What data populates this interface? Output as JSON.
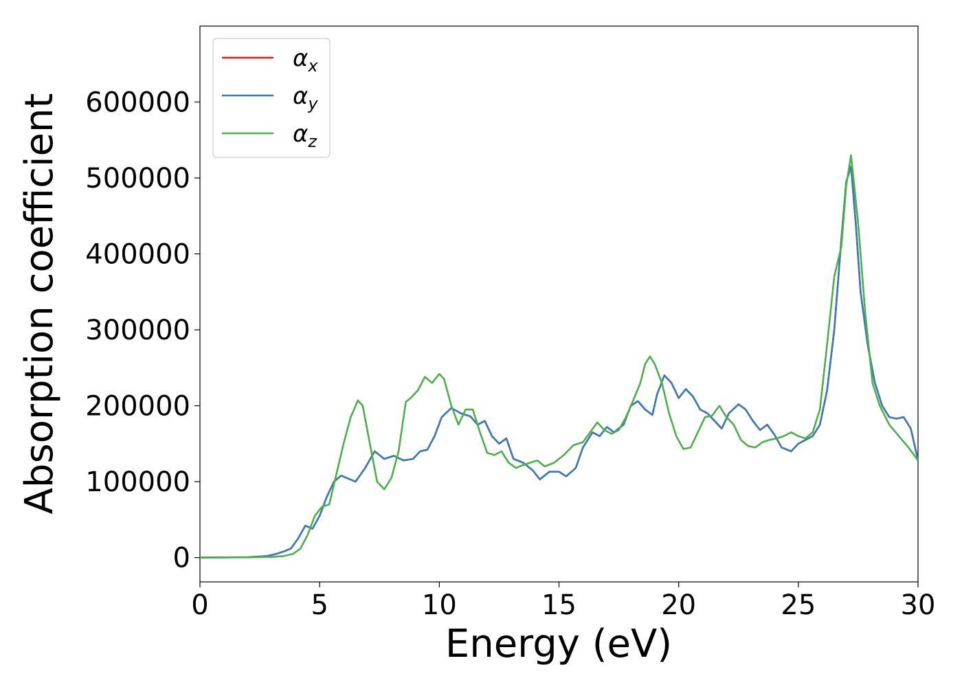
{
  "chart_data": {
    "type": "line",
    "xlabel": "Energy (eV)",
    "ylabel": "Absorption coefficient",
    "xlim": [
      0,
      30
    ],
    "ylim": [
      -32000,
      700000
    ],
    "xticks": [
      "0",
      "5",
      "10",
      "15",
      "20",
      "25",
      "30"
    ],
    "xtick_values": [
      0,
      5,
      10,
      15,
      20,
      25,
      30
    ],
    "yticks": [
      "0",
      "100000",
      "200000",
      "300000",
      "400000",
      "500000",
      "600000"
    ],
    "ytick_values": [
      0,
      100000,
      200000,
      300000,
      400000,
      500000,
      600000
    ],
    "grid": false,
    "legend_position": "top-left",
    "series": [
      {
        "name": "α_x",
        "symbol": "α",
        "sub": "x",
        "color": "#e41a1c",
        "x": [
          0,
          2,
          2.8,
          3.2,
          3.5,
          3.8,
          4.1,
          4.4,
          4.7,
          5.0,
          5.3,
          5.6,
          5.9,
          6.2,
          6.5,
          6.9,
          7.3,
          7.7,
          8.1,
          8.5,
          8.9,
          9.2,
          9.5,
          9.8,
          10.1,
          10.5,
          10.9,
          11.3,
          11.6,
          11.9,
          12.2,
          12.5,
          12.8,
          13.1,
          13.5,
          13.9,
          14.2,
          14.6,
          15.0,
          15.3,
          15.7,
          16.0,
          16.4,
          16.7,
          17.0,
          17.3,
          17.7,
          18.0,
          18.3,
          18.6,
          18.9,
          19.1,
          19.4,
          19.7,
          20.0,
          20.3,
          20.6,
          20.9,
          21.2,
          21.5,
          21.8,
          22.1,
          22.5,
          22.8,
          23.1,
          23.4,
          23.7,
          24.0,
          24.3,
          24.7,
          25.0,
          25.3,
          25.6,
          25.9,
          26.2,
          26.5,
          26.8,
          27.0,
          27.2,
          27.4,
          27.6,
          27.9,
          28.2,
          28.5,
          28.8,
          29.1,
          29.4,
          29.7,
          30.0
        ],
        "y": [
          0,
          500,
          2000,
          5000,
          8000,
          12000,
          25000,
          42000,
          38000,
          55000,
          80000,
          100000,
          108000,
          104000,
          100000,
          118000,
          140000,
          130000,
          134000,
          128000,
          130000,
          140000,
          142000,
          160000,
          185000,
          197000,
          190000,
          186000,
          175000,
          180000,
          160000,
          150000,
          157000,
          130000,
          125000,
          115000,
          103000,
          113000,
          113000,
          107000,
          118000,
          145000,
          165000,
          160000,
          172000,
          165000,
          175000,
          200000,
          206000,
          195000,
          188000,
          215000,
          240000,
          230000,
          210000,
          222000,
          212000,
          195000,
          190000,
          180000,
          170000,
          190000,
          202000,
          195000,
          180000,
          168000,
          175000,
          162000,
          145000,
          140000,
          150000,
          155000,
          160000,
          175000,
          220000,
          300000,
          420000,
          495000,
          515000,
          440000,
          350000,
          280000,
          230000,
          200000,
          185000,
          183000,
          185000,
          170000,
          128000
        ]
      },
      {
        "name": "α_y",
        "symbol": "α",
        "sub": "y",
        "color": "#377eb8",
        "x": [
          0,
          2,
          2.8,
          3.2,
          3.5,
          3.8,
          4.1,
          4.4,
          4.7,
          5.0,
          5.3,
          5.6,
          5.9,
          6.2,
          6.5,
          6.9,
          7.3,
          7.7,
          8.1,
          8.5,
          8.9,
          9.2,
          9.5,
          9.8,
          10.1,
          10.5,
          10.9,
          11.3,
          11.6,
          11.9,
          12.2,
          12.5,
          12.8,
          13.1,
          13.5,
          13.9,
          14.2,
          14.6,
          15.0,
          15.3,
          15.7,
          16.0,
          16.4,
          16.7,
          17.0,
          17.3,
          17.7,
          18.0,
          18.3,
          18.6,
          18.9,
          19.1,
          19.4,
          19.7,
          20.0,
          20.3,
          20.6,
          20.9,
          21.2,
          21.5,
          21.8,
          22.1,
          22.5,
          22.8,
          23.1,
          23.4,
          23.7,
          24.0,
          24.3,
          24.7,
          25.0,
          25.3,
          25.6,
          25.9,
          26.2,
          26.5,
          26.8,
          27.0,
          27.2,
          27.4,
          27.6,
          27.9,
          28.2,
          28.5,
          28.8,
          29.1,
          29.4,
          29.7,
          30.0
        ],
        "y": [
          0,
          500,
          2000,
          5000,
          8000,
          12000,
          25000,
          42000,
          38000,
          55000,
          80000,
          100000,
          108000,
          104000,
          100000,
          118000,
          140000,
          130000,
          134000,
          128000,
          130000,
          140000,
          142000,
          160000,
          185000,
          197000,
          190000,
          186000,
          175000,
          180000,
          160000,
          150000,
          157000,
          130000,
          125000,
          115000,
          103000,
          113000,
          113000,
          107000,
          118000,
          145000,
          165000,
          160000,
          172000,
          165000,
          175000,
          200000,
          206000,
          195000,
          188000,
          215000,
          240000,
          230000,
          210000,
          222000,
          212000,
          195000,
          190000,
          180000,
          170000,
          190000,
          202000,
          195000,
          180000,
          168000,
          175000,
          162000,
          145000,
          140000,
          150000,
          155000,
          160000,
          175000,
          220000,
          300000,
          420000,
          495000,
          515000,
          440000,
          350000,
          280000,
          230000,
          200000,
          185000,
          183000,
          185000,
          170000,
          128000
        ]
      },
      {
        "name": "α_z",
        "symbol": "α",
        "sub": "z",
        "color": "#4daf4a",
        "x": [
          0,
          2,
          3,
          3.5,
          3.9,
          4.2,
          4.5,
          4.8,
          5.1,
          5.4,
          5.7,
          6.0,
          6.3,
          6.6,
          6.8,
          7.1,
          7.4,
          7.7,
          8.0,
          8.3,
          8.6,
          8.8,
          9.1,
          9.4,
          9.7,
          10.0,
          10.2,
          10.5,
          10.8,
          11.1,
          11.4,
          11.7,
          12.0,
          12.3,
          12.6,
          12.9,
          13.2,
          13.5,
          13.8,
          14.1,
          14.4,
          14.8,
          15.2,
          15.6,
          16.0,
          16.3,
          16.6,
          16.9,
          17.2,
          17.5,
          17.8,
          18.1,
          18.4,
          18.6,
          18.8,
          19.0,
          19.3,
          19.6,
          19.9,
          20.2,
          20.5,
          20.8,
          21.1,
          21.4,
          21.7,
          22.0,
          22.3,
          22.6,
          22.9,
          23.2,
          23.5,
          23.8,
          24.1,
          24.4,
          24.7,
          25.0,
          25.3,
          25.6,
          25.9,
          26.2,
          26.5,
          26.8,
          27.0,
          27.2,
          27.5,
          27.8,
          28.1,
          28.4,
          28.8,
          29.2,
          29.6,
          30.0
        ],
        "y": [
          0,
          300,
          800,
          2000,
          5000,
          12000,
          30000,
          55000,
          67000,
          70000,
          110000,
          150000,
          185000,
          207000,
          200000,
          150000,
          100000,
          90000,
          105000,
          140000,
          205000,
          210000,
          220000,
          238000,
          230000,
          242000,
          235000,
          200000,
          175000,
          195000,
          195000,
          165000,
          138000,
          135000,
          140000,
          125000,
          118000,
          122000,
          125000,
          128000,
          120000,
          125000,
          135000,
          148000,
          152000,
          165000,
          178000,
          168000,
          163000,
          168000,
          185000,
          207000,
          230000,
          255000,
          265000,
          255000,
          230000,
          190000,
          160000,
          143000,
          145000,
          165000,
          185000,
          187000,
          200000,
          185000,
          175000,
          155000,
          147000,
          145000,
          152000,
          155000,
          157000,
          160000,
          165000,
          160000,
          157000,
          165000,
          195000,
          280000,
          370000,
          410000,
          490000,
          530000,
          440000,
          320000,
          230000,
          200000,
          175000,
          160000,
          145000,
          128000
        ]
      }
    ]
  }
}
